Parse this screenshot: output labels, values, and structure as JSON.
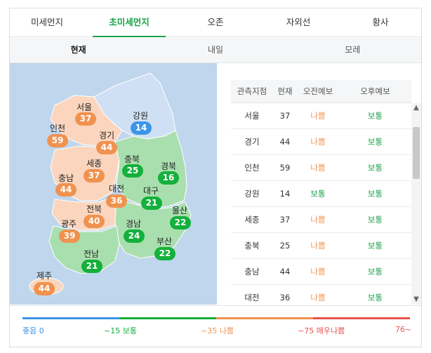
{
  "tabs": [
    {
      "label": "미세먼지",
      "active": false
    },
    {
      "label": "초미세먼지",
      "active": true
    },
    {
      "label": "오존",
      "active": false
    },
    {
      "label": "자외선",
      "active": false
    },
    {
      "label": "황사",
      "active": false
    }
  ],
  "subtabs": [
    {
      "label": "현재",
      "active": true
    },
    {
      "label": "내일",
      "active": false
    },
    {
      "label": "모레",
      "active": false
    }
  ],
  "map": {
    "regions": [
      {
        "name": "서울",
        "value": "37",
        "level": "bad"
      },
      {
        "name": "강원",
        "value": "14",
        "level": "good"
      },
      {
        "name": "인천",
        "value": "59",
        "level": "bad"
      },
      {
        "name": "경기",
        "value": "44",
        "level": "bad"
      },
      {
        "name": "세종",
        "value": "37",
        "level": "bad"
      },
      {
        "name": "충북",
        "value": "25",
        "level": "normal"
      },
      {
        "name": "경북",
        "value": "16",
        "level": "normal"
      },
      {
        "name": "충남",
        "value": "44",
        "level": "bad"
      },
      {
        "name": "대전",
        "value": "36",
        "level": "bad"
      },
      {
        "name": "대구",
        "value": "21",
        "level": "normal"
      },
      {
        "name": "전북",
        "value": "40",
        "level": "bad"
      },
      {
        "name": "울산",
        "value": "22",
        "level": "normal"
      },
      {
        "name": "광주",
        "value": "39",
        "level": "bad"
      },
      {
        "name": "경남",
        "value": "24",
        "level": "normal"
      },
      {
        "name": "부산",
        "value": "22",
        "level": "normal"
      },
      {
        "name": "전남",
        "value": "21",
        "level": "normal"
      },
      {
        "name": "제주",
        "value": "44",
        "level": "bad"
      }
    ]
  },
  "table": {
    "headers": [
      "관측지점",
      "현재",
      "오전예보",
      "오후예보"
    ],
    "rows": [
      {
        "station": "서울",
        "current": "37",
        "am": "나쁨",
        "pm": "보통",
        "am_level": "bad",
        "pm_level": "normal"
      },
      {
        "station": "경기",
        "current": "44",
        "am": "나쁨",
        "pm": "보통",
        "am_level": "bad",
        "pm_level": "normal"
      },
      {
        "station": "인천",
        "current": "59",
        "am": "나쁨",
        "pm": "보통",
        "am_level": "bad",
        "pm_level": "normal"
      },
      {
        "station": "강원",
        "current": "14",
        "am": "보통",
        "pm": "보통",
        "am_level": "normal",
        "pm_level": "normal"
      },
      {
        "station": "세종",
        "current": "37",
        "am": "나쁨",
        "pm": "보통",
        "am_level": "bad",
        "pm_level": "normal"
      },
      {
        "station": "충북",
        "current": "25",
        "am": "나쁨",
        "pm": "보통",
        "am_level": "bad",
        "pm_level": "normal"
      },
      {
        "station": "충남",
        "current": "44",
        "am": "나쁨",
        "pm": "보통",
        "am_level": "bad",
        "pm_level": "normal"
      },
      {
        "station": "대전",
        "current": "36",
        "am": "나쁨",
        "pm": "보통",
        "am_level": "bad",
        "pm_level": "normal"
      }
    ]
  },
  "legend": [
    {
      "label": "좋음 0",
      "color": "#3b96e8"
    },
    {
      "label": "~15 보통",
      "color": "#14b03b"
    },
    {
      "label": "~35 나쁨",
      "color": "#f0924f"
    },
    {
      "label": "~75 매우나쁨",
      "color": "#e8534f"
    },
    {
      "label": "76~",
      "color": "#e8534f"
    }
  ],
  "colors": {
    "good": "#3b96e8",
    "normal": "#14b03b",
    "bad": "#f0924f",
    "very_bad": "#e8534f",
    "accent": "#1aa14a"
  },
  "icons": {
    "scroll_up": "chevron-up-icon",
    "scroll_down": "chevron-down-icon"
  }
}
